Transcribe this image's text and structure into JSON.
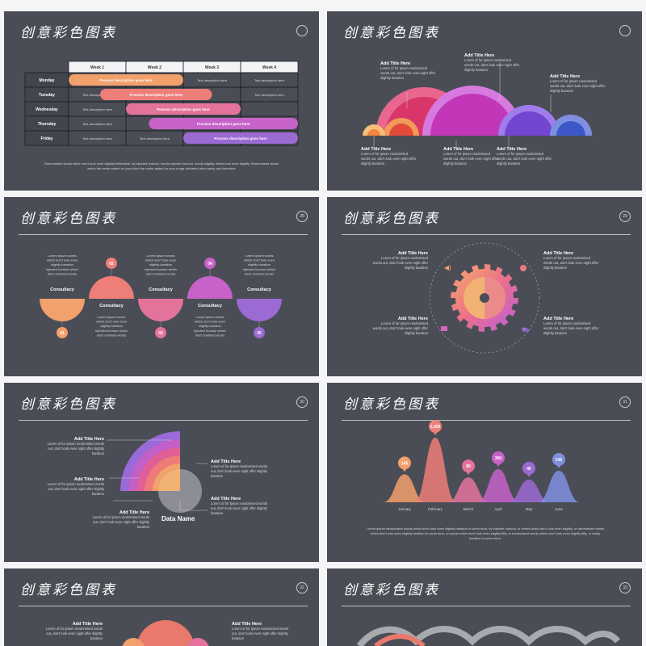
{
  "slide_title": "创意彩色图表",
  "slide_numbers": [
    "",
    "",
    "28",
    "29",
    "30",
    "31",
    "32",
    "33"
  ],
  "slide1": {
    "weeks": [
      "Week 1",
      "Week 2",
      "Week 3",
      "Week 4"
    ],
    "days": [
      "Monday",
      "Tuesday",
      "Wednesday",
      "Thursday",
      "Friday"
    ],
    "process_label": "Process description goes here",
    "text_label": "Text description here",
    "footer": "Randomised words which don't look even slightly believable, by injected humour, words injected humour, words slightly, which look even slightly. Randomised words which the cerbe added on your hitch the cerbe added on your durga delivered other party, and therefore",
    "colors": [
      "#f2a06c",
      "#ee7e78",
      "#e4739b",
      "#c763c8",
      "#9b6ad3"
    ]
  },
  "slide2": {
    "title": "Add Title Here",
    "body": "Lorem of for ipsum randomised words out, don't look even night offer slightly baration"
  },
  "slide3": {
    "label": "Consultacy",
    "numbers": [
      "01",
      "02",
      "03",
      "04",
      "05"
    ],
    "body": "Lorem ipsum words which don't look even slightly baration injected humour which don't domised words",
    "colors": [
      "#f2a06c",
      "#ee7e78",
      "#e4739b",
      "#c763c8",
      "#9b6ad3"
    ]
  },
  "slide4": {
    "title": "Add Title Here",
    "body": "Lorem of for ipsum randomised words out, don't look even night offer slightly baration"
  },
  "slide5": {
    "title": "Add Title Here",
    "body": "Lorem of for ipsum randomised words out, don't look even night offer slightly baration",
    "center_label": "Data Name"
  },
  "slide6": {
    "footer": "Lorem ipsum randomised words which don't look even slightly baration in some form, by injected humour, or words which don't look even slightly, or randomised words which don't look even slightly baration in some form, or words which don't look even slightly fifty, or randomised words which don't look even slightly fifty, or randy baration in some form."
  },
  "slide7": {
    "title": "Add Title Here",
    "body": "Lorem of for ipsum randomised words out, don't look even night offer slightly baration"
  },
  "chart_data": {
    "type": "area",
    "categories": [
      "January",
      "February",
      "March",
      "April",
      "May",
      "June"
    ],
    "values": [
      145,
      2450,
      80,
      300,
      45,
      245
    ],
    "value_labels": [
      "145",
      "2,450",
      "80",
      "300",
      "45",
      "245"
    ],
    "colors": [
      "#f2a06c",
      "#ee7e78",
      "#e4739b",
      "#c763c8",
      "#9b6ad3",
      "#7f8fe0"
    ]
  }
}
